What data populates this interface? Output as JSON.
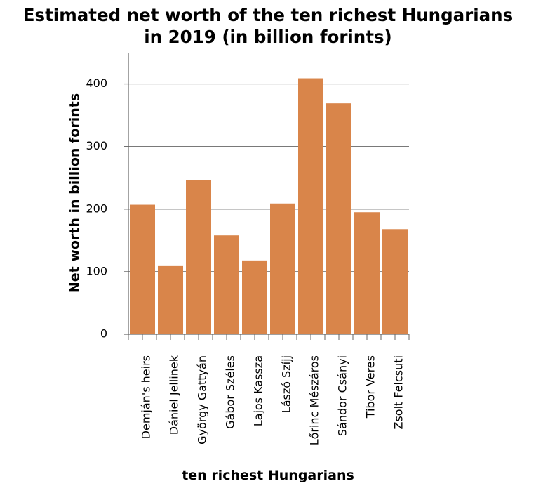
{
  "chart_data": {
    "type": "bar",
    "title_lines": [
      "Estimated net worth of the ten richest Hungarians",
      "in 2019 (in billion forints)"
    ],
    "xlabel": "ten richest Hungarians",
    "ylabel": "Net worth in billion forints",
    "categories": [
      "Demján's heirs",
      "Dániel Jellinek",
      "György Gattyán",
      "Gábor Széles",
      "Lajos Kassza",
      "Lászó Szíjj",
      "Lőrinc Mészáros",
      "Sándor Csányi",
      "Tibor Veres",
      "Zsolt Felcsuti"
    ],
    "values": [
      207,
      109,
      246,
      158,
      118,
      209,
      409,
      369,
      195,
      168
    ],
    "ylim": [
      0,
      450
    ],
    "yticks": [
      0,
      100,
      200,
      300,
      400
    ],
    "bar_color": "#d9854a",
    "grid": true
  }
}
